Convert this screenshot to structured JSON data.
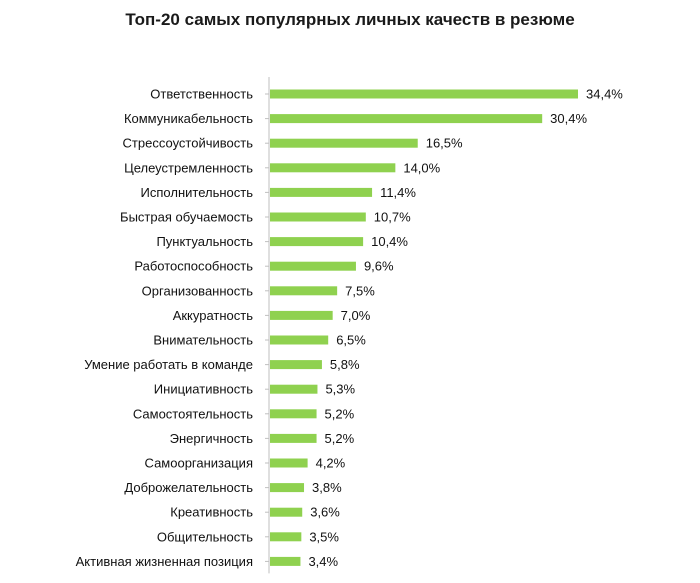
{
  "chart_data": {
    "type": "bar",
    "orientation": "horizontal",
    "title": "Топ-20 самых популярных личных качеств в резюме",
    "categories": [
      "Ответственность",
      "Коммуникабельность",
      "Стрессоустойчивость",
      "Целеустремленность",
      "Исполнительность",
      "Быстрая обучаемость",
      "Пунктуальность",
      "Работоспособность",
      "Организованность",
      "Аккуратность",
      "Внимательность",
      "Умение работать в команде",
      "Инициативность",
      "Самостоятельность",
      "Энергичность",
      "Самоорганизация",
      "Доброжелательность",
      "Креативность",
      "Общительность",
      "Активная жизненная позиция"
    ],
    "values": [
      34.4,
      30.4,
      16.5,
      14.0,
      11.4,
      10.7,
      10.4,
      9.6,
      7.5,
      7.0,
      6.5,
      5.8,
      5.3,
      5.2,
      5.2,
      4.2,
      3.8,
      3.6,
      3.5,
      3.4
    ],
    "value_labels": [
      "34,4%",
      "30,4%",
      "16,5%",
      "14,0%",
      "11,4%",
      "10,7%",
      "10,4%",
      "9,6%",
      "7,5%",
      "7,0%",
      "6,5%",
      "5,8%",
      "5,3%",
      "5,2%",
      "5,2%",
      "4,2%",
      "3,8%",
      "3,6%",
      "3,5%",
      "3,4%"
    ],
    "xlim": [
      0,
      34.4
    ],
    "bar_color": "#8fd14f",
    "axis_color": "#bfbfbf",
    "grid": false,
    "legend": false
  }
}
